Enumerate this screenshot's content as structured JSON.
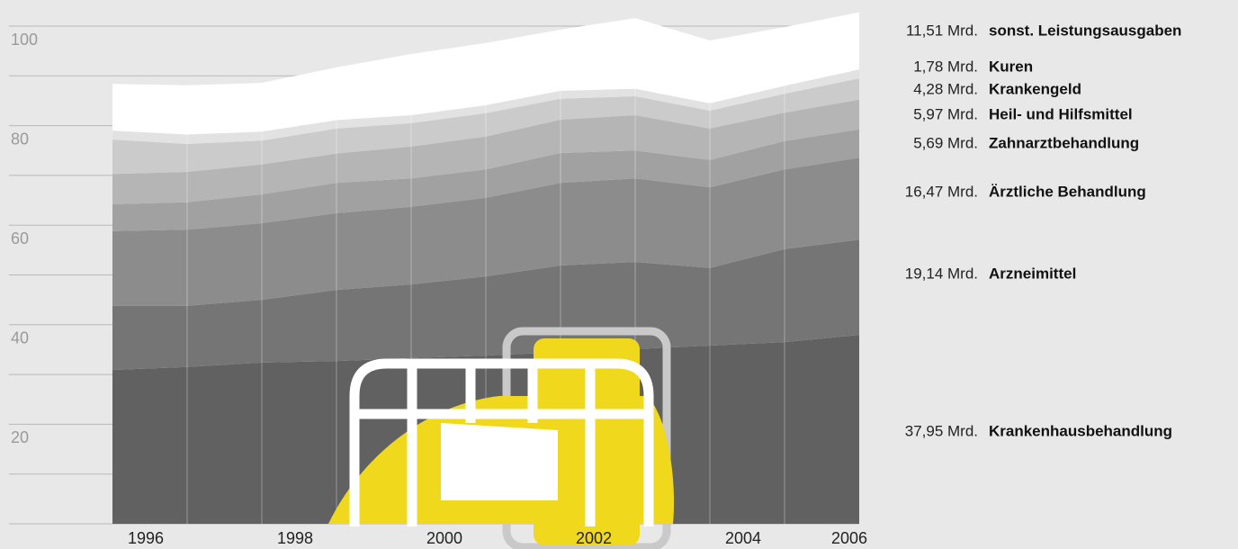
{
  "chart_data": {
    "type": "stacked_area",
    "categories": [
      "1996",
      null,
      "1998",
      null,
      "2000",
      null,
      "2002",
      null,
      "2004",
      null,
      "2006"
    ],
    "ylim": [
      0,
      100
    ],
    "yticks": [
      20,
      40,
      60,
      80,
      100
    ],
    "minor_yticks": [
      0,
      10,
      30,
      50,
      70,
      90
    ],
    "grid": true,
    "series": [
      {
        "name": "Krankenhausbehandlung",
        "color": "#616161",
        "values": [
          30.9,
          31.5,
          32.4,
          32.7,
          33.3,
          33.8,
          34.5,
          35.1,
          35.8,
          36.5,
          37.95
        ],
        "value_labels": [
          null,
          null,
          null,
          null,
          null,
          null,
          null,
          null,
          null,
          null,
          "37,95 Mrd."
        ]
      },
      {
        "name": "Arzneimittel",
        "color": "#757575",
        "values": [
          12.9,
          12.3,
          12.6,
          14.3,
          14.8,
          15.9,
          17.4,
          17.5,
          15.6,
          18.7,
          19.14
        ],
        "value_labels": [
          null,
          null,
          null,
          null,
          null,
          null,
          null,
          null,
          null,
          null,
          "19,14 Mrd."
        ]
      },
      {
        "name": "Ärztliche Behandlung",
        "color": "#8c8c8c",
        "values": [
          15.0,
          15.3,
          15.4,
          15.4,
          15.6,
          15.8,
          16.6,
          16.8,
          16.2,
          16.0,
          16.47
        ],
        "value_labels": [
          null,
          null,
          null,
          null,
          null,
          null,
          null,
          null,
          null,
          null,
          "16,47 Mrd."
        ]
      },
      {
        "name": "Zahnarztbehandlung",
        "color": "#a1a1a1",
        "values": [
          5.4,
          5.5,
          5.8,
          6.1,
          5.7,
          5.7,
          6.0,
          5.6,
          5.5,
          5.7,
          5.69
        ],
        "value_labels": [
          null,
          null,
          null,
          null,
          null,
          null,
          null,
          null,
          null,
          null,
          "5,69 Mrd."
        ]
      },
      {
        "name": "Heil- und Hilfsmittel",
        "color": "#b5b5b5",
        "values": [
          6.1,
          6.1,
          6.0,
          5.9,
          6.4,
          6.6,
          6.7,
          7.1,
          6.3,
          5.7,
          5.97
        ],
        "value_labels": [
          null,
          null,
          null,
          null,
          null,
          null,
          null,
          null,
          null,
          null,
          "5,97 Mrd."
        ]
      },
      {
        "name": "Krankengeld",
        "color": "#cbcbcb",
        "values": [
          6.9,
          5.6,
          4.8,
          5.0,
          4.7,
          4.7,
          4.2,
          3.8,
          3.6,
          3.8,
          4.28
        ],
        "value_labels": [
          null,
          null,
          null,
          null,
          null,
          null,
          null,
          null,
          null,
          null,
          "4,28 Mrd."
        ]
      },
      {
        "name": "Kuren",
        "color": "#e2e2e2",
        "values": [
          1.8,
          1.9,
          1.8,
          1.7,
          1.6,
          1.6,
          1.6,
          1.5,
          1.5,
          1.6,
          1.78
        ],
        "value_labels": [
          null,
          null,
          null,
          null,
          null,
          null,
          null,
          null,
          null,
          null,
          "1,78 Mrd."
        ]
      },
      {
        "name": "sonst. Leistungsausgaben",
        "color": "#ffffff",
        "values": [
          9.4,
          9.9,
          9.8,
          10.6,
          12.3,
          12.5,
          12.3,
          14.2,
          12.6,
          11.8,
          11.51
        ],
        "value_labels": [
          null,
          null,
          null,
          null,
          null,
          null,
          null,
          null,
          null,
          null,
          "11,51 Mrd."
        ]
      }
    ]
  }
}
